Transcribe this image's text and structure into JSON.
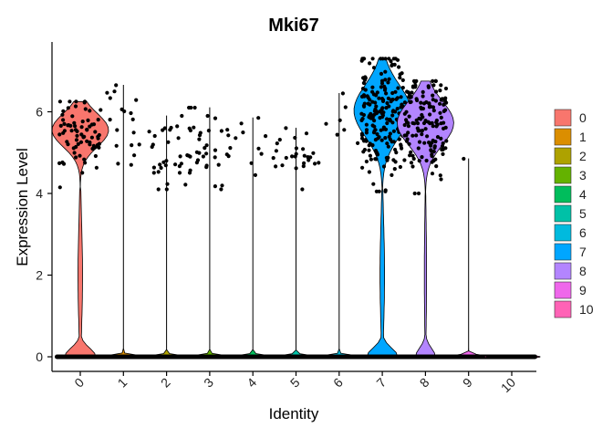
{
  "chart_data": {
    "type": "violin",
    "title": "Mki67",
    "xlabel": "Identity",
    "ylabel": "Expression Level",
    "ylim": [
      -0.25,
      7.7
    ],
    "yticks": [
      0,
      2,
      4,
      6
    ],
    "categories": [
      "0",
      "1",
      "2",
      "3",
      "4",
      "5",
      "6",
      "7",
      "8",
      "9",
      "10"
    ],
    "legend_position": "right",
    "legend": [
      {
        "label": "0",
        "color": "#F8766D"
      },
      {
        "label": "1",
        "color": "#DB8E00"
      },
      {
        "label": "2",
        "color": "#AEA200"
      },
      {
        "label": "3",
        "color": "#64B200"
      },
      {
        "label": "4",
        "color": "#00BD5C"
      },
      {
        "label": "5",
        "color": "#00C1A7"
      },
      {
        "label": "6",
        "color": "#00BADE"
      },
      {
        "label": "7",
        "color": "#00A6FF"
      },
      {
        "label": "8",
        "color": "#B385FF"
      },
      {
        "label": "9",
        "color": "#EF67EB"
      },
      {
        "label": "10",
        "color": "#FF63B6"
      }
    ],
    "groups": [
      {
        "identity": "0",
        "max": 6.25,
        "expressing_cells": 75,
        "expressing_range": [
          4.15,
          6.25
        ]
      },
      {
        "identity": "1",
        "max": 6.65,
        "expressing_cells": 18,
        "expressing_range": [
          4.7,
          6.65
        ]
      },
      {
        "identity": "2",
        "max": 5.9,
        "expressing_cells": 30,
        "expressing_range": [
          4.1,
          5.9
        ]
      },
      {
        "identity": "3",
        "max": 6.1,
        "expressing_cells": 38,
        "expressing_range": [
          4.1,
          6.1
        ]
      },
      {
        "identity": "4",
        "max": 5.85,
        "expressing_cells": 10,
        "expressing_range": [
          4.45,
          5.85
        ]
      },
      {
        "identity": "5",
        "max": 5.6,
        "expressing_cells": 24,
        "expressing_range": [
          4.1,
          5.6
        ]
      },
      {
        "identity": "6",
        "max": 6.45,
        "expressing_cells": 9,
        "expressing_range": [
          4.75,
          6.45
        ]
      },
      {
        "identity": "7",
        "max": 7.3,
        "expressing_cells": 200,
        "expressing_range": [
          4.05,
          7.3
        ]
      },
      {
        "identity": "8",
        "max": 6.75,
        "expressing_cells": 150,
        "expressing_range": [
          4.0,
          6.75
        ]
      },
      {
        "identity": "9",
        "max": 4.85,
        "expressing_cells": 1,
        "expressing_range": [
          4.85,
          4.85
        ]
      },
      {
        "identity": "10",
        "max": 0,
        "expressing_cells": 0,
        "expressing_range": [
          0,
          0
        ]
      }
    ]
  }
}
